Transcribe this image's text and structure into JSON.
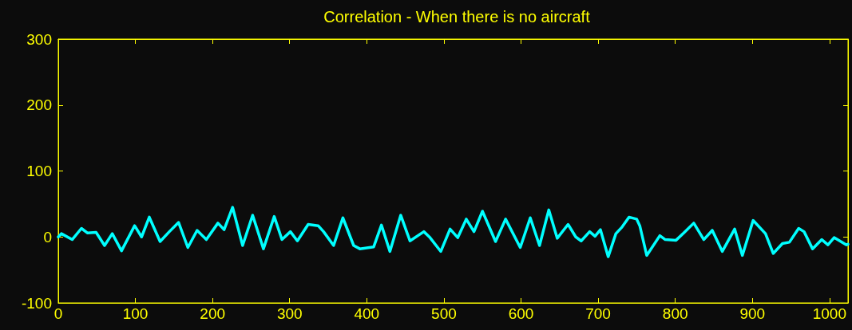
{
  "chart_data": {
    "type": "line",
    "title": "Correlation - When there is no aircraft",
    "xlim": [
      0,
      1024
    ],
    "xticks": [
      0,
      100,
      200,
      300,
      400,
      500,
      600,
      700,
      800,
      900,
      1000
    ],
    "ylim": [
      -100,
      300
    ],
    "yticks": [
      -100,
      0,
      100,
      200,
      300
    ],
    "grid": false,
    "marker": "none",
    "line_style": "solid",
    "x": [
      0,
      4,
      18,
      30,
      38,
      49,
      60,
      70,
      82,
      99,
      108,
      118,
      132,
      144,
      156,
      168,
      180,
      192,
      207,
      215,
      226,
      239,
      252,
      266,
      280,
      290,
      301,
      310,
      324,
      337,
      344,
      357,
      369,
      383,
      391,
      409,
      419,
      430,
      444,
      456,
      474,
      482,
      496,
      508,
      518,
      529,
      539,
      550,
      567,
      580,
      599,
      612,
      624,
      636,
      647,
      661,
      671,
      678,
      689,
      696,
      703,
      713,
      723,
      731,
      740,
      750,
      754,
      763,
      780,
      787,
      801,
      811,
      824,
      837,
      848,
      861,
      877,
      887,
      901,
      917,
      927,
      939,
      948,
      960,
      967,
      978,
      990,
      998,
      1006,
      1022,
      1024
    ],
    "series": [
      {
        "color": "#00ffff",
        "values": [
          0,
          5,
          -4,
          13,
          6,
          7,
          -13,
          5,
          -21,
          17,
          0,
          30,
          -7,
          8,
          22,
          -16,
          10,
          -4,
          21,
          11,
          45,
          -13,
          33,
          -18,
          31,
          -4,
          8,
          -6,
          19,
          17,
          8,
          -13,
          29,
          -13,
          -18,
          -15,
          18,
          -22,
          33,
          -6,
          8,
          -1,
          -22,
          12,
          -1,
          27,
          8,
          39,
          -7,
          27,
          -16,
          29,
          -13,
          41,
          -2,
          19,
          0,
          -6,
          8,
          1,
          11,
          -30,
          5,
          15,
          30,
          27,
          17,
          -28,
          2,
          -4,
          -5,
          6,
          21,
          -4,
          10,
          -22,
          12,
          -28,
          25,
          5,
          -25,
          -10,
          -8,
          13,
          8,
          -18,
          -4,
          -12,
          -1,
          -12,
          -11
        ]
      }
    ]
  }
}
